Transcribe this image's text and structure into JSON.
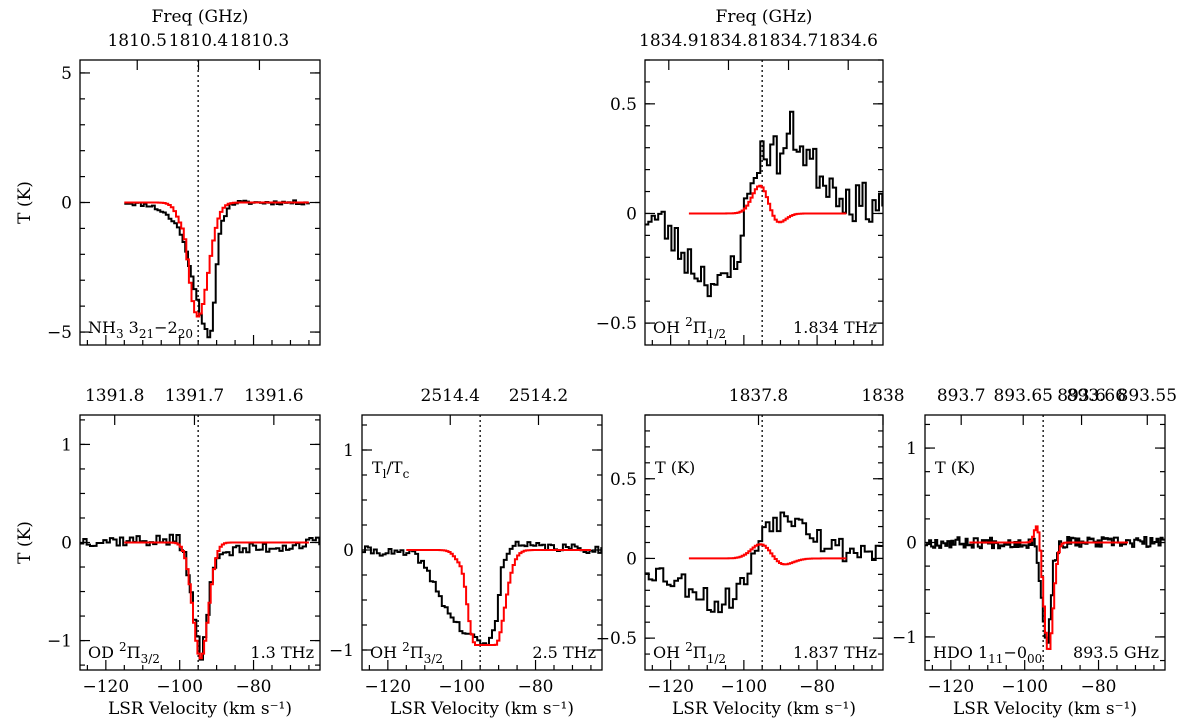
{
  "chart_data": [
    {
      "id": "nh3",
      "type": "line",
      "label_parts": [
        {
          "t": "NH"
        },
        {
          "t": "3",
          "sub": true
        },
        {
          "t": " 3"
        },
        {
          "t": "21",
          "sub": true
        },
        {
          "t": "−2"
        },
        {
          "t": "20",
          "sub": true
        }
      ],
      "freq_title": "Freq (GHz)",
      "freq_ticks": [
        {
          "label": "1810.5",
          "v": -111.5
        },
        {
          "label": "1810.4",
          "v": -94.9
        },
        {
          "label": "1810.3",
          "v": -78.4
        }
      ],
      "ylabel": "T (K)",
      "xlabel": "",
      "xlim": [
        -127,
        -62
      ],
      "ylim": [
        -5.5,
        5.5
      ],
      "y_ticks": [
        {
          "label": "5",
          "v": 5
        },
        {
          "label": "0",
          "v": 0
        },
        {
          "label": "−5",
          "v": -5
        }
      ],
      "x_ticks": [],
      "vline": -95,
      "observed": {
        "vstart": -115,
        "vend": -65,
        "step": 0.75,
        "anchors": [
          [
            -115,
            0
          ],
          [
            -108,
            -0.1
          ],
          [
            -104,
            -0.4
          ],
          [
            -100,
            -1.0
          ],
          [
            -98,
            -2.0
          ],
          [
            -96,
            -3.2
          ],
          [
            -94,
            -4.5
          ],
          [
            -92,
            -5.3
          ],
          [
            -91,
            -4.8
          ],
          [
            -90,
            -2.5
          ],
          [
            -89,
            -1.0
          ],
          [
            -87,
            -0.2
          ],
          [
            -85,
            0.0
          ],
          [
            -65,
            0.0
          ]
        ],
        "noise": 0.08,
        "seed": 11
      },
      "model": {
        "vstart": -115,
        "vend": -65,
        "step": 0.7,
        "type": "pcygni",
        "c": -95,
        "a": -4.4,
        "w": 2.8,
        "ea": 0.55,
        "ec": -98.5,
        "ew": 0.9
      }
    },
    {
      "id": "oh1834",
      "type": "line",
      "label_parts": [
        {
          "t": "OH "
        },
        {
          "t": "2",
          "sup": true
        },
        {
          "t": "Π"
        },
        {
          "t": "1/2",
          "sub": true
        }
      ],
      "label_right": "1.834 THz",
      "freq_title": "Freq (GHz)",
      "freq_ticks": [
        {
          "label": "1834.9",
          "v": -120.5
        },
        {
          "label": "1834.8",
          "v": -104.2
        },
        {
          "label": "1834.7",
          "v": -87.8
        },
        {
          "label": "1834.6",
          "v": -71.5
        }
      ],
      "ylabel": "",
      "xlabel": "",
      "xlim": [
        -127,
        -62
      ],
      "ylim": [
        -0.6,
        0.7
      ],
      "y_ticks": [
        {
          "label": "0.5",
          "v": 0.5
        },
        {
          "label": "0",
          "v": 0
        },
        {
          "label": "−0.5",
          "v": -0.5
        }
      ],
      "x_ticks": [],
      "vline": -95,
      "observed": {
        "vstart": -127,
        "vend": -62,
        "step": 0.9,
        "anchors": [
          [
            -127,
            0
          ],
          [
            -122,
            -0.05
          ],
          [
            -118,
            -0.15
          ],
          [
            -113,
            -0.25
          ],
          [
            -109,
            -0.3
          ],
          [
            -106,
            -0.35
          ],
          [
            -102,
            -0.2
          ],
          [
            -99,
            0.05
          ],
          [
            -96,
            0.25
          ],
          [
            -93,
            0.3
          ],
          [
            -90,
            0.25
          ],
          [
            -87,
            0.38
          ],
          [
            -84,
            0.3
          ],
          [
            -80,
            0.2
          ],
          [
            -75,
            0.12
          ],
          [
            -70,
            0.05
          ],
          [
            -62,
            0.05
          ]
        ],
        "noise": 0.09,
        "seed": 23
      },
      "model": {
        "vstart": -115,
        "vend": -72,
        "step": 0.6,
        "type": "deriv",
        "c": -95,
        "a": 0.16,
        "w": 2.4,
        "ba": -0.08,
        "bc": -92,
        "bw": 2.5
      }
    },
    {
      "id": "od",
      "type": "line",
      "label_parts": [
        {
          "t": "OD "
        },
        {
          "t": "2",
          "sup": true
        },
        {
          "t": "Π"
        },
        {
          "t": "3/2",
          "sub": true
        }
      ],
      "label_right": "1.3 THz",
      "freq_title": "",
      "freq_ticks": [
        {
          "label": "1391.8",
          "v": -117.6
        },
        {
          "label": "1391.7",
          "v": -96.0
        },
        {
          "label": "1391.6",
          "v": -74.5
        }
      ],
      "ylabel": "T (K)",
      "xlabel": "LSR Velocity (km s⁻¹)",
      "xlim": [
        -127,
        -62
      ],
      "ylim": [
        -1.3,
        1.3
      ],
      "y_ticks": [
        {
          "label": "1",
          "v": 1
        },
        {
          "label": "0",
          "v": 0
        },
        {
          "label": "−1",
          "v": -1
        }
      ],
      "x_ticks": [
        {
          "label": "−120",
          "v": -120
        },
        {
          "label": "−100",
          "v": -100
        },
        {
          "label": "−80",
          "v": -80
        }
      ],
      "vline": -95,
      "observed": {
        "vstart": -127,
        "vend": -62,
        "step": 0.9,
        "anchors": [
          [
            -127,
            0.02
          ],
          [
            -100,
            0.02
          ],
          [
            -98,
            -0.2
          ],
          [
            -96,
            -0.8
          ],
          [
            -94,
            -1.2
          ],
          [
            -92,
            -0.6
          ],
          [
            -90,
            -0.1
          ],
          [
            -62,
            0.0
          ]
        ],
        "noise": 0.06,
        "seed": 37
      },
      "model": {
        "vstart": -115,
        "vend": -65,
        "step": 0.6,
        "type": "gauss",
        "c": -94.3,
        "a": -1.18,
        "w": 2.1
      }
    },
    {
      "id": "oh25",
      "type": "line",
      "label_parts": [
        {
          "t": "OH "
        },
        {
          "t": "2",
          "sup": true
        },
        {
          "t": "Π"
        },
        {
          "t": "3/2",
          "sub": true
        }
      ],
      "label_right": "2.5 THz",
      "top_label_parts": [
        {
          "t": "T"
        },
        {
          "t": "l",
          "sub": true
        },
        {
          "t": "/T"
        },
        {
          "t": "c",
          "sub": true
        }
      ],
      "freq_title": "",
      "freq_ticks": [
        {
          "label": "2514.4",
          "v": -103.1
        },
        {
          "label": "2514.2",
          "v": -79.2
        }
      ],
      "ylabel": "",
      "xlabel": "LSR Velocity (km s⁻¹)",
      "xlim": [
        -127,
        -62
      ],
      "ylim": [
        -1.2,
        1.35
      ],
      "y_ticks": [
        {
          "label": "1",
          "v": 1
        },
        {
          "label": "0",
          "v": 0
        },
        {
          "label": "−1",
          "v": -1
        }
      ],
      "x_ticks": [
        {
          "label": "−120",
          "v": -120
        },
        {
          "label": "−100",
          "v": -100
        },
        {
          "label": "−80",
          "v": -80
        }
      ],
      "vline": -95,
      "observed": {
        "vstart": -127,
        "vend": -62,
        "step": 0.8,
        "anchors": [
          [
            -127,
            0
          ],
          [
            -112,
            -0.05
          ],
          [
            -108,
            -0.3
          ],
          [
            -104,
            -0.6
          ],
          [
            -100,
            -0.8
          ],
          [
            -96,
            -0.9
          ],
          [
            -93,
            -0.95
          ],
          [
            -91,
            -0.8
          ],
          [
            -89,
            -0.2
          ],
          [
            -87,
            0.05
          ],
          [
            -62,
            0.0
          ]
        ],
        "noise": 0.04,
        "seed": 41
      },
      "model": {
        "vstart": -115,
        "vend": -65,
        "step": 0.6,
        "type": "pcygniflat",
        "c": -93.5,
        "a": -0.95,
        "w": 2.6,
        "fw": 2.6,
        "ea": 0.13,
        "ec": -99.5,
        "ew": 1.0
      }
    },
    {
      "id": "oh1837",
      "type": "line",
      "label_parts": [
        {
          "t": "OH "
        },
        {
          "t": "2",
          "sup": true
        },
        {
          "t": "Π"
        },
        {
          "t": "1/2",
          "sub": true
        }
      ],
      "label_right": "1.837 THz",
      "top_label_parts": [
        {
          "t": "T (K)"
        }
      ],
      "freq_title": "",
      "freq_ticks": [
        {
          "label": "1837.8",
          "v": -96.0
        },
        {
          "label": "1838",
          "v": -62.0
        }
      ],
      "ylabel": "",
      "xlabel": "LSR Velocity (km s⁻¹)",
      "xlim": [
        -127,
        -62
      ],
      "ylim": [
        -0.7,
        0.9
      ],
      "y_ticks": [
        {
          "label": "0.5",
          "v": 0.5
        },
        {
          "label": "0",
          "v": 0
        },
        {
          "label": "−0.5",
          "v": -0.5
        }
      ],
      "x_ticks": [
        {
          "label": "−120",
          "v": -120
        },
        {
          "label": "−100",
          "v": -100
        },
        {
          "label": "−80",
          "v": -80
        }
      ],
      "vline": -95,
      "observed": {
        "vstart": -127,
        "vend": -62,
        "step": 1.0,
        "anchors": [
          [
            -127,
            -0.05
          ],
          [
            -122,
            -0.1
          ],
          [
            -117,
            -0.15
          ],
          [
            -112,
            -0.2
          ],
          [
            -108,
            -0.3
          ],
          [
            -104,
            -0.25
          ],
          [
            -100,
            -0.15
          ],
          [
            -97,
            0.0
          ],
          [
            -95,
            0.2
          ],
          [
            -92,
            0.25
          ],
          [
            -88,
            0.25
          ],
          [
            -85,
            0.3
          ],
          [
            -82,
            0.2
          ],
          [
            -78,
            0.1
          ],
          [
            -72,
            0.05
          ],
          [
            -62,
            0.05
          ]
        ],
        "noise": 0.08,
        "seed": 53
      },
      "model": {
        "vstart": -115,
        "vend": -72,
        "step": 0.6,
        "type": "deriv",
        "c": -95,
        "a": 0.1,
        "w": 2.8,
        "ba": -0.05,
        "bc": -90,
        "bw": 3.0
      }
    },
    {
      "id": "hdo",
      "type": "line",
      "label_parts": [
        {
          "t": "HDO 1"
        },
        {
          "t": "11",
          "sub": true
        },
        {
          "t": "−0"
        },
        {
          "t": "00",
          "sub": true
        }
      ],
      "label_right": "893.5 GHz",
      "top_label_parts": [
        {
          "t": "T (K)"
        }
      ],
      "freq_title": "",
      "freq_ticks": [
        {
          "label": "893.7",
          "v": -117.2
        },
        {
          "label": "893.65",
          "v": -100.4
        },
        {
          "label": "893.6",
          "v": -84.6
        },
        {
          "label": "893.55",
          "v": -66.8
        }
      ],
      "extra_freq_label": {
        "label": "893.66",
        "v": -80.6
      },
      "ylabel": "",
      "xlabel": "LSR Velocity (km s⁻¹)",
      "xlim": [
        -127,
        -62
      ],
      "ylim": [
        -1.35,
        1.35
      ],
      "y_ticks": [
        {
          "label": "1",
          "v": 1
        },
        {
          "label": "0",
          "v": 0
        },
        {
          "label": "−1",
          "v": -1
        }
      ],
      "x_ticks": [
        {
          "label": "−120",
          "v": -120
        },
        {
          "label": "−100",
          "v": -100
        },
        {
          "label": "−80",
          "v": -80
        }
      ],
      "vline": -95,
      "observed": {
        "vstart": -127,
        "vend": -62,
        "step": 0.55,
        "anchors": [
          [
            -127,
            0
          ],
          [
            -97,
            0
          ],
          [
            -95.5,
            -0.5
          ],
          [
            -94.5,
            -1.0
          ],
          [
            -93.8,
            -1.1
          ],
          [
            -93,
            -0.7
          ],
          [
            -92,
            -0.2
          ],
          [
            -90,
            0.0
          ],
          [
            -62,
            0.0
          ]
        ],
        "noise": 0.06,
        "seed": 67
      },
      "model": {
        "vstart": -115,
        "vend": -72,
        "step": 0.5,
        "type": "pcygni",
        "c": -93.5,
        "a": -1.15,
        "w": 1.25,
        "ea": 0.22,
        "ec": -96.5,
        "ew": 0.8
      }
    }
  ]
}
